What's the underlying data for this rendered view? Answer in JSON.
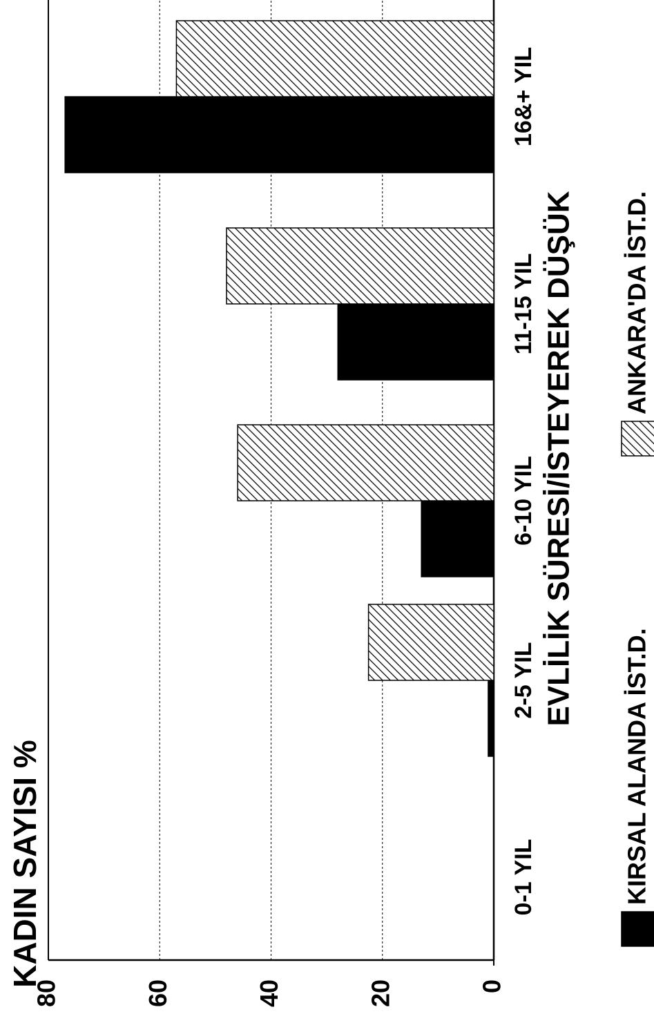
{
  "chart_data": {
    "type": "bar",
    "title": "KADIN SAYISI %",
    "x_label": "EVLİLİK SÜRESİ/İSTEYEREK DÜŞÜK",
    "categories": [
      "0-1 YIL",
      "2-5 YIL",
      "6-10 YIL",
      "11-15 YIL",
      "16&+ YIL"
    ],
    "series": [
      {
        "name": "KIRSAL ALANDA İST.D.",
        "color": "#000000",
        "fill": "solid",
        "values": [
          0,
          1,
          13,
          28,
          77
        ]
      },
      {
        "name": "ANKARA'DA İST.D.",
        "color": "#000000",
        "fill": "hatch",
        "values": [
          0,
          22.5,
          46,
          48,
          57
        ]
      }
    ],
    "ylim": [
      0,
      80
    ],
    "yticks": [
      0,
      20,
      40,
      60,
      80
    ],
    "grid": true
  }
}
